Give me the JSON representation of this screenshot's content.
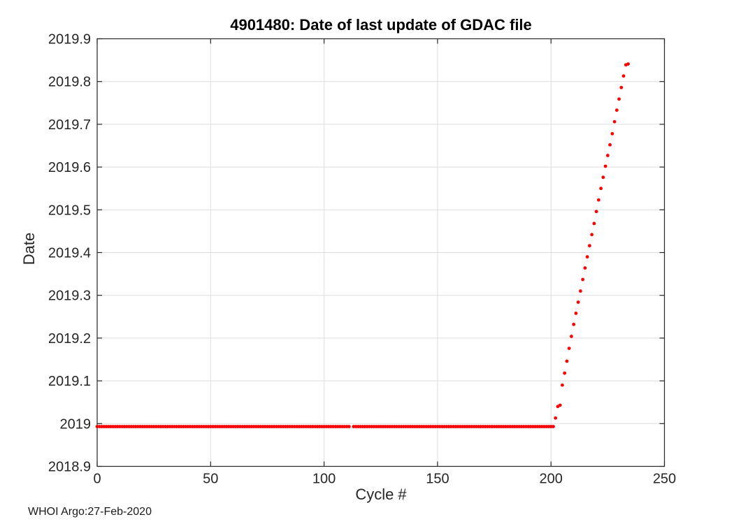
{
  "figure": {
    "footer": "WHOI Argo:27-Feb-2020"
  },
  "chart_data": {
    "type": "scatter",
    "title": "4901480: Date of last update of GDAC file",
    "xlabel": "Cycle #",
    "ylabel": "Date",
    "xlim": [
      0,
      250
    ],
    "ylim": [
      2018.9,
      2019.9
    ],
    "xtick_values": [
      0,
      50,
      100,
      150,
      200,
      250
    ],
    "xtick_labels": [
      "0",
      "50",
      "100",
      "150",
      "200",
      "250"
    ],
    "ytick_values": [
      2018.9,
      2019.0,
      2019.1,
      2019.2,
      2019.3,
      2019.4,
      2019.5,
      2019.6,
      2019.7,
      2019.8,
      2019.9
    ],
    "ytick_labels": [
      "2018.9",
      "2019",
      "2019.1",
      "2019.2",
      "2019.3",
      "2019.4",
      "2019.5",
      "2019.6",
      "2019.7",
      "2019.8",
      "2019.9"
    ],
    "grid": true,
    "grid_color": "#dedede",
    "axis_color": "#262626",
    "marker_color": "#ff0000",
    "flat_segment": {
      "cycle_start": 0,
      "cycle_end": 201,
      "date_value": 2018.993,
      "missing_cycles": [
        112
      ]
    },
    "rising_points": [
      [
        202,
        2019.013
      ],
      [
        203,
        2019.04
      ],
      [
        204,
        2019.043
      ],
      [
        205,
        2019.09
      ],
      [
        206,
        2019.118
      ],
      [
        207,
        2019.146
      ],
      [
        208,
        2019.176
      ],
      [
        209,
        2019.204
      ],
      [
        210,
        2019.232
      ],
      [
        211,
        2019.258
      ],
      [
        212,
        2019.284
      ],
      [
        213,
        2019.31
      ],
      [
        214,
        2019.337
      ],
      [
        215,
        2019.364
      ],
      [
        216,
        2019.39
      ],
      [
        217,
        2019.416
      ],
      [
        218,
        2019.442
      ],
      [
        219,
        2019.468
      ],
      [
        220,
        2019.496
      ],
      [
        221,
        2019.523
      ],
      [
        222,
        2019.55
      ],
      [
        223,
        2019.576
      ],
      [
        224,
        2019.602
      ],
      [
        225,
        2019.627
      ],
      [
        226,
        2019.652
      ],
      [
        227,
        2019.678
      ],
      [
        228,
        2019.706
      ],
      [
        229,
        2019.733
      ],
      [
        230,
        2019.759
      ],
      [
        231,
        2019.786
      ],
      [
        232,
        2019.813
      ],
      [
        233,
        2019.839
      ],
      [
        234,
        2019.841
      ]
    ]
  }
}
